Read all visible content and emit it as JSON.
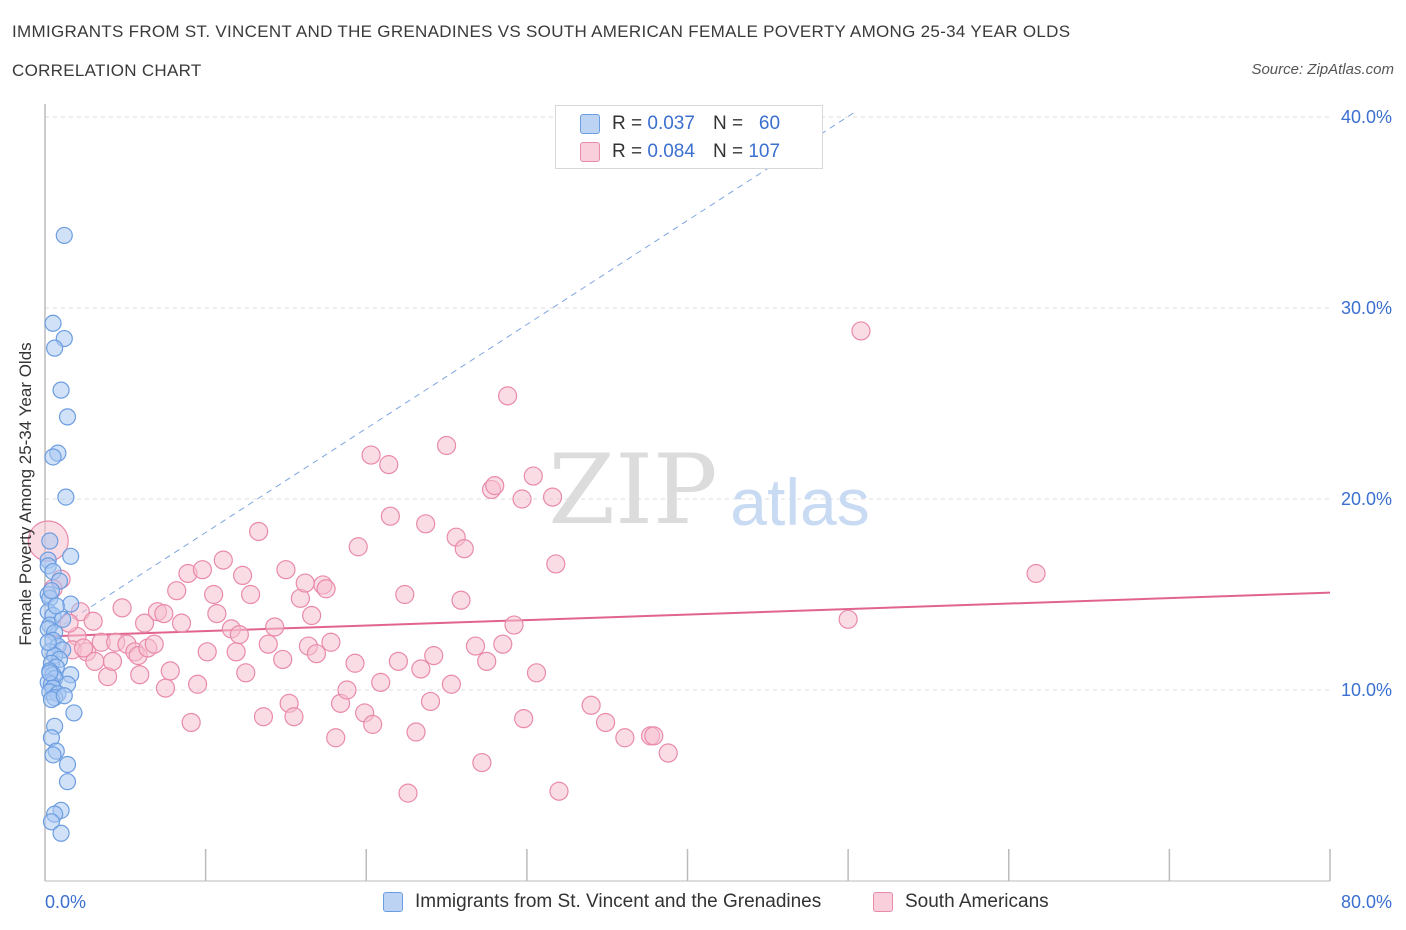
{
  "header": {
    "title": "IMMIGRANTS FROM ST. VINCENT AND THE GRENADINES VS SOUTH AMERICAN FEMALE POVERTY AMONG 25-34 YEAR OLDS",
    "subtitle": "CORRELATION CHART",
    "source": "Source: ZipAtlas.com"
  },
  "watermark": {
    "zip": "ZIP",
    "atlas": "atlas"
  },
  "legend": {
    "series1": {
      "r_label": "R =",
      "r_value": "0.037",
      "n_label": "N =",
      "n_value": "60"
    },
    "series2": {
      "r_label": "R =",
      "r_value": "0.084",
      "n_label": "N =",
      "n_value": "107"
    }
  },
  "bottom_legend": {
    "series1": "Immigrants from St. Vincent and the Grenadines",
    "series2": "South Americans"
  },
  "colors": {
    "blue_fill": "#a9c8f2",
    "blue_stroke": "#6c9de0",
    "blue_line": "#3b6fd0",
    "pink_fill": "#f6bfd0",
    "pink_stroke": "#e98aaa",
    "pink_line": "#e0648e",
    "axis_text": "#3b6fd0",
    "grid": "#dddddd"
  },
  "chart_data": {
    "type": "scatter",
    "title": "IMMIGRANTS FROM ST. VINCENT AND THE GRENADINES VS SOUTH AMERICAN FEMALE POVERTY AMONG 25-34 YEAR OLDS",
    "xlabel": "",
    "ylabel": "Female Poverty Among 25-34 Year Olds",
    "xlim": [
      0,
      80
    ],
    "ylim": [
      0,
      42
    ],
    "x_tick_labels": [
      "0.0%",
      "80.0%"
    ],
    "y_ticks": [
      10,
      20,
      30,
      40
    ],
    "y_tick_labels": [
      "10.0%",
      "20.0%",
      "30.0%",
      "40.0%"
    ],
    "grid": true,
    "legend_position": "top-center",
    "series": [
      {
        "name": "Immigrants from St. Vincent and the Grenadines",
        "color": "#a9c8f2",
        "trend": {
          "x": [
            0,
            1.4
          ],
          "y": [
            12.8,
            14.1
          ],
          "style": "solid"
        },
        "extrapolation": {
          "x": [
            0,
            50.5
          ],
          "y": [
            12.8,
            40.3
          ],
          "style": "dashed"
        },
        "points": [
          [
            1.2,
            33.8
          ],
          [
            0.5,
            29.2
          ],
          [
            1.2,
            28.4
          ],
          [
            0.6,
            27.9
          ],
          [
            1.0,
            25.7
          ],
          [
            1.4,
            24.3
          ],
          [
            0.8,
            22.4
          ],
          [
            0.5,
            22.2
          ],
          [
            1.3,
            20.1
          ],
          [
            1.6,
            17.0
          ],
          [
            0.2,
            16.8
          ],
          [
            0.2,
            16.5
          ],
          [
            0.5,
            16.2
          ],
          [
            0.9,
            15.7
          ],
          [
            0.2,
            15.0
          ],
          [
            0.3,
            14.8
          ],
          [
            1.6,
            14.5
          ],
          [
            0.2,
            14.1
          ],
          [
            0.5,
            13.9
          ],
          [
            0.3,
            13.4
          ],
          [
            0.2,
            13.2
          ],
          [
            0.6,
            13.0
          ],
          [
            0.5,
            12.6
          ],
          [
            0.8,
            12.3
          ],
          [
            1.1,
            12.1
          ],
          [
            0.3,
            12.0
          ],
          [
            0.6,
            11.8
          ],
          [
            0.9,
            11.6
          ],
          [
            0.4,
            11.4
          ],
          [
            0.7,
            11.2
          ],
          [
            0.3,
            11.0
          ],
          [
            0.5,
            10.8
          ],
          [
            1.6,
            10.8
          ],
          [
            0.6,
            10.6
          ],
          [
            0.2,
            10.4
          ],
          [
            0.4,
            10.3
          ],
          [
            1.4,
            10.3
          ],
          [
            0.5,
            10.1
          ],
          [
            0.3,
            9.9
          ],
          [
            0.8,
            9.8
          ],
          [
            0.6,
            9.6
          ],
          [
            0.4,
            9.5
          ],
          [
            1.2,
            9.7
          ],
          [
            1.8,
            8.8
          ],
          [
            0.6,
            8.1
          ],
          [
            0.4,
            7.5
          ],
          [
            0.7,
            6.8
          ],
          [
            0.5,
            6.6
          ],
          [
            1.4,
            6.1
          ],
          [
            1.4,
            5.2
          ],
          [
            1.0,
            3.7
          ],
          [
            0.6,
            3.5
          ],
          [
            0.4,
            3.1
          ],
          [
            1.0,
            2.5
          ],
          [
            0.3,
            17.8
          ],
          [
            0.2,
            12.5
          ],
          [
            0.4,
            15.2
          ],
          [
            1.1,
            13.7
          ],
          [
            0.7,
            14.4
          ],
          [
            0.3,
            10.9
          ]
        ]
      },
      {
        "name": "South Americans",
        "color": "#f6bfd0",
        "trend": {
          "x": [
            0,
            80
          ],
          "y": [
            12.8,
            15.1
          ],
          "style": "solid"
        },
        "points": [
          [
            0.2,
            17.8
          ],
          [
            1.0,
            15.8
          ],
          [
            0.5,
            15.3
          ],
          [
            2.0,
            12.8
          ],
          [
            2.2,
            14.1
          ],
          [
            1.5,
            13.5
          ],
          [
            1.7,
            12.1
          ],
          [
            2.6,
            12.0
          ],
          [
            3.0,
            13.6
          ],
          [
            3.1,
            11.5
          ],
          [
            3.5,
            12.5
          ],
          [
            3.9,
            10.7
          ],
          [
            4.2,
            11.5
          ],
          [
            4.4,
            12.5
          ],
          [
            4.8,
            14.3
          ],
          [
            5.1,
            12.4
          ],
          [
            5.6,
            12.0
          ],
          [
            5.8,
            11.8
          ],
          [
            5.9,
            10.8
          ],
          [
            6.2,
            13.5
          ],
          [
            6.4,
            12.2
          ],
          [
            6.8,
            12.4
          ],
          [
            7.0,
            14.1
          ],
          [
            7.4,
            14.0
          ],
          [
            7.5,
            10.1
          ],
          [
            7.8,
            11.0
          ],
          [
            8.2,
            15.2
          ],
          [
            8.5,
            13.5
          ],
          [
            8.9,
            16.1
          ],
          [
            9.1,
            8.3
          ],
          [
            9.5,
            10.3
          ],
          [
            9.8,
            16.3
          ],
          [
            10.1,
            12.0
          ],
          [
            10.5,
            15.0
          ],
          [
            10.7,
            14.0
          ],
          [
            11.1,
            16.8
          ],
          [
            11.6,
            13.2
          ],
          [
            11.9,
            12.0
          ],
          [
            12.1,
            12.9
          ],
          [
            12.3,
            16.0
          ],
          [
            12.5,
            10.9
          ],
          [
            12.8,
            15.0
          ],
          [
            13.3,
            18.3
          ],
          [
            13.6,
            8.6
          ],
          [
            13.9,
            12.4
          ],
          [
            14.3,
            13.3
          ],
          [
            14.8,
            11.6
          ],
          [
            15.0,
            16.3
          ],
          [
            15.2,
            9.3
          ],
          [
            15.5,
            8.6
          ],
          [
            15.9,
            14.8
          ],
          [
            16.2,
            15.6
          ],
          [
            16.4,
            12.3
          ],
          [
            16.6,
            13.9
          ],
          [
            16.9,
            11.9
          ],
          [
            17.3,
            15.5
          ],
          [
            17.5,
            15.3
          ],
          [
            17.8,
            12.5
          ],
          [
            18.1,
            7.5
          ],
          [
            18.4,
            9.3
          ],
          [
            18.8,
            10.0
          ],
          [
            19.3,
            11.4
          ],
          [
            19.5,
            17.5
          ],
          [
            19.9,
            8.8
          ],
          [
            20.3,
            22.3
          ],
          [
            20.4,
            8.2
          ],
          [
            20.9,
            10.4
          ],
          [
            21.4,
            21.8
          ],
          [
            21.5,
            19.1
          ],
          [
            22.0,
            11.5
          ],
          [
            22.4,
            15.0
          ],
          [
            22.6,
            4.6
          ],
          [
            23.1,
            7.8
          ],
          [
            23.4,
            11.1
          ],
          [
            23.7,
            18.7
          ],
          [
            24.0,
            9.4
          ],
          [
            24.2,
            11.8
          ],
          [
            25.0,
            22.8
          ],
          [
            25.3,
            10.3
          ],
          [
            25.6,
            18.0
          ],
          [
            25.9,
            14.7
          ],
          [
            26.1,
            17.4
          ],
          [
            26.8,
            12.3
          ],
          [
            27.2,
            6.2
          ],
          [
            27.5,
            11.5
          ],
          [
            27.8,
            20.5
          ],
          [
            28.0,
            20.7
          ],
          [
            28.5,
            12.4
          ],
          [
            28.8,
            25.4
          ],
          [
            29.2,
            13.4
          ],
          [
            29.7,
            20.0
          ],
          [
            29.8,
            8.5
          ],
          [
            30.4,
            21.2
          ],
          [
            30.6,
            10.9
          ],
          [
            31.6,
            20.1
          ],
          [
            31.8,
            16.6
          ],
          [
            32.0,
            4.7
          ],
          [
            34.0,
            9.2
          ],
          [
            34.9,
            8.3
          ],
          [
            36.1,
            7.5
          ],
          [
            37.7,
            7.6
          ],
          [
            37.9,
            7.6
          ],
          [
            38.8,
            6.7
          ],
          [
            50.0,
            13.7
          ],
          [
            50.8,
            28.8
          ],
          [
            61.7,
            16.1
          ],
          [
            2.4,
            12.2
          ]
        ]
      }
    ]
  }
}
